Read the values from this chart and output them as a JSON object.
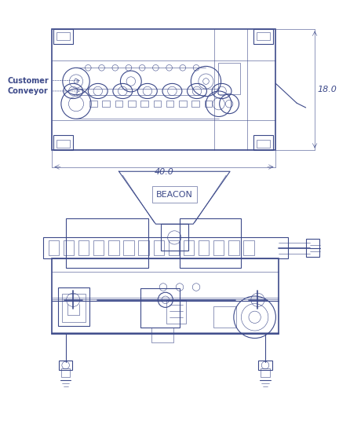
{
  "bg_color": "#ffffff",
  "line_color": "#3d4a8a",
  "text_color": "#3d4a8a",
  "fig_width": 4.32,
  "fig_height": 5.36,
  "dpi": 100,
  "dim_18": "18.0",
  "dim_40": "40.0",
  "label_customer": "Customer",
  "label_conveyor": "Conveyor",
  "label_beacon": "BEACON"
}
